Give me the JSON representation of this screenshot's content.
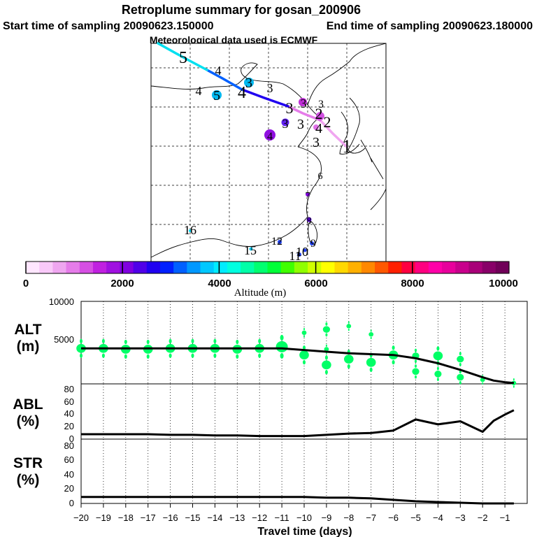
{
  "chart_data": {
    "type": "retroplume-summary",
    "title": "Retroplume summary for gosan_200906",
    "start_label": "Start time of sampling 20090623.150000",
    "end_label": "End time of sampling 20090623.180000",
    "met_label": "Meteorological data used is ECMWF",
    "colorbar": {
      "xlabel": "Altitude (m)",
      "min": 0,
      "max": 10000,
      "tick_labels": [
        "0",
        "2000",
        "4000",
        "6000",
        "8000",
        "10000"
      ],
      "colors": [
        "#ffe6ff",
        "#f9c9f9",
        "#efa6f0",
        "#e57ce9",
        "#d64fe3",
        "#c020e0",
        "#a010e0",
        "#8000e0",
        "#5000e8",
        "#2000f0",
        "#0020ff",
        "#0060ff",
        "#0098ff",
        "#00c8ff",
        "#00ecff",
        "#00ffe0",
        "#00ffa8",
        "#00ff70",
        "#00ff38",
        "#40ff00",
        "#90ff00",
        "#d0ff00",
        "#ffff00",
        "#ffd800",
        "#ffb000",
        "#ff8800",
        "#ff5800",
        "#ff2000",
        "#ff0040",
        "#ff0080",
        "#ff00a8",
        "#e8009c",
        "#c8008c",
        "#a80078",
        "#880068",
        "#700058"
      ]
    },
    "map": {
      "trajectory": [
        {
          "label": "1",
          "color": "#f0a6f0"
        },
        {
          "label": "2",
          "color": "#e57ce9"
        },
        {
          "label": "3",
          "color": "#2000f0"
        },
        {
          "label": "4",
          "color": "#0060ff"
        },
        {
          "label": "5",
          "color": "#00e0f0"
        }
      ],
      "labels": [
        "5",
        "4",
        "4",
        "5",
        "4",
        "3",
        "3",
        "3",
        "3",
        "3",
        "3",
        "2",
        "4",
        "2",
        "3",
        "4",
        "3",
        "1",
        "6",
        "7",
        "8",
        "9",
        "10",
        "11",
        "12",
        "15",
        "16"
      ]
    },
    "x_axis": {
      "label": "Travel time (days)",
      "min": -20,
      "max": 0,
      "ticks": [
        -20,
        -19,
        -18,
        -17,
        -16,
        -15,
        -14,
        -13,
        -12,
        -11,
        -10,
        -9,
        -8,
        -7,
        -6,
        -5,
        -4,
        -3,
        -2,
        -1
      ],
      "tick_labels": [
        "−20",
        "−19",
        "−18",
        "−17",
        "−16",
        "−15",
        "−14",
        "−13",
        "−12",
        "−11",
        "−10",
        "−9",
        "−8",
        "−7",
        "−6",
        "−5",
        "−4",
        "−3",
        "−2",
        "−1"
      ]
    },
    "panels": {
      "alt": {
        "label_top": "ALT",
        "label_bottom": "(m)",
        "ylim": [
          0,
          10000
        ],
        "tick_labels": [
          "5000",
          "10000"
        ],
        "mean_line": {
          "x": [
            -20,
            -19,
            -18,
            -17,
            -16,
            -15,
            -14,
            -13,
            -12,
            -11,
            -10,
            -9,
            -8,
            -7,
            -6,
            -5,
            -4,
            -3,
            -2,
            -1.5,
            -1,
            -0.6
          ],
          "y": [
            4300,
            4300,
            4300,
            4300,
            4300,
            4300,
            4300,
            4300,
            4300,
            4300,
            4100,
            3900,
            3700,
            3600,
            3500,
            3100,
            2500,
            1700,
            800,
            400,
            200,
            100
          ]
        },
        "clusters": [
          {
            "x": -20,
            "y": 4300,
            "size": 4
          },
          {
            "x": -19,
            "y": 4300,
            "size": 4
          },
          {
            "x": -18,
            "y": 4200,
            "size": 4
          },
          {
            "x": -17,
            "y": 4200,
            "size": 4
          },
          {
            "x": -16,
            "y": 4300,
            "size": 4
          },
          {
            "x": -15,
            "y": 4300,
            "size": 4
          },
          {
            "x": -14,
            "y": 4300,
            "size": 4
          },
          {
            "x": -13,
            "y": 4200,
            "size": 4
          },
          {
            "x": -12,
            "y": 4300,
            "size": 4
          },
          {
            "x": -11,
            "y": 4500,
            "size": 5
          },
          {
            "x": -10,
            "y": 3500,
            "size": 4
          },
          {
            "x": -10,
            "y": 6200,
            "size": 2
          },
          {
            "x": -9,
            "y": 2300,
            "size": 4
          },
          {
            "x": -9,
            "y": 6600,
            "size": 3
          },
          {
            "x": -9,
            "y": 4200,
            "size": 2
          },
          {
            "x": -8,
            "y": 3000,
            "size": 4
          },
          {
            "x": -8,
            "y": 7000,
            "size": 2
          },
          {
            "x": -7,
            "y": 2600,
            "size": 4
          },
          {
            "x": -7,
            "y": 6000,
            "size": 2
          },
          {
            "x": -6,
            "y": 3500,
            "size": 4
          },
          {
            "x": -5,
            "y": 3400,
            "size": 3
          },
          {
            "x": -5,
            "y": 1500,
            "size": 3
          },
          {
            "x": -4,
            "y": 3400,
            "size": 4
          },
          {
            "x": -4,
            "y": 1200,
            "size": 3
          },
          {
            "x": -3,
            "y": 3000,
            "size": 3
          },
          {
            "x": -3,
            "y": 800,
            "size": 3
          },
          {
            "x": -2,
            "y": 500,
            "size": 2
          },
          {
            "x": -0.6,
            "y": 100,
            "size": 2
          }
        ]
      },
      "abl": {
        "label_top": "ABL",
        "label_bottom": "(%)",
        "ylim": [
          0,
          90
        ],
        "tick_labels": [
          "0",
          "20",
          "40",
          "60",
          "80"
        ],
        "x": [
          -20,
          -19,
          -18,
          -17,
          -16,
          -15,
          -14,
          -13,
          -12,
          -11,
          -10,
          -9,
          -8,
          -7,
          -6,
          -5,
          -4,
          -3,
          -2,
          -1.5,
          -1,
          -0.6
        ],
        "y": [
          8,
          8,
          8,
          8,
          7,
          7,
          6,
          6,
          5,
          5,
          5,
          7,
          9,
          10,
          14,
          32,
          24,
          29,
          12,
          30,
          40,
          47
        ]
      },
      "str": {
        "label_top": "STR",
        "label_bottom": "(%)",
        "ylim": [
          0,
          90
        ],
        "tick_labels": [
          "0",
          "20",
          "40",
          "60",
          "80"
        ],
        "x": [
          -20,
          -19,
          -18,
          -17,
          -16,
          -15,
          -14,
          -13,
          -12,
          -11,
          -10,
          -9,
          -8,
          -7,
          -6,
          -5,
          -4,
          -3,
          -2,
          -1,
          -0.6
        ],
        "y": [
          9,
          9,
          9,
          9,
          9,
          9,
          9,
          9,
          9,
          9,
          9,
          8,
          8,
          7,
          5,
          3,
          2,
          1,
          0,
          0,
          0
        ]
      }
    }
  }
}
